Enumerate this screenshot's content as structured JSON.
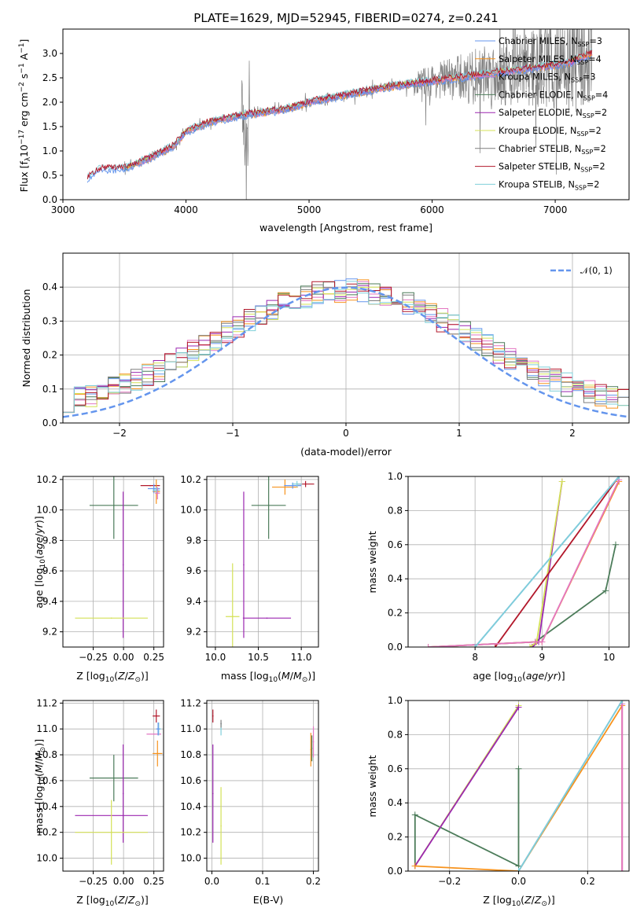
{
  "colors": [
    "#6495ed",
    "#f7931e",
    "#e377c2",
    "#4c7c5a",
    "#9b27b0",
    "#d4e157",
    "#7f7f7f",
    "#b2182b",
    "#7fcfd9"
  ],
  "chart_data": [
    {
      "type": "line",
      "id": "spectrum",
      "title": "PLATE=1629, MJD=52945, FIBERID=0274, z=0.241",
      "xlabel": "wavelength [Angstrom, rest frame]",
      "ylabel": "Flux [f$_\\lambda$10$^{-17}$ erg cm$^{-2}$ s$^{-1}$ A$^{-1}$]",
      "xlim": [
        3000,
        7600
      ],
      "ylim": [
        0,
        3.5
      ],
      "xticks": [
        "3000",
        "4000",
        "5000",
        "6000",
        "7000"
      ],
      "yticks": [
        "0.0",
        "0.5",
        "1.0",
        "1.5",
        "2.0",
        "2.5",
        "3.0"
      ],
      "legend_position": "upper right",
      "legend": [
        {
          "base": "Chabrier MILES, N",
          "sub": "SSP",
          "val": "=3"
        },
        {
          "base": "Salpeter MILES, N",
          "sub": "SSP",
          "val": "=4"
        },
        {
          "base": "Kroupa MILES, N",
          "sub": "SSP",
          "val": "=3"
        },
        {
          "base": "Chabrier ELODIE, N",
          "sub": "SSP",
          "val": "=4"
        },
        {
          "base": "Salpeter ELODIE, N",
          "sub": "SSP",
          "val": "=2"
        },
        {
          "base": "Kroupa ELODIE, N",
          "sub": "SSP",
          "val": "=2"
        },
        {
          "base": "Chabrier STELIB, N",
          "sub": "SSP",
          "val": "=2"
        },
        {
          "base": "Salpeter STELIB, N",
          "sub": "SSP",
          "val": "=2"
        },
        {
          "base": "Kroupa STELIB, N",
          "sub": "SSP",
          "val": "=2"
        }
      ],
      "model_continuum": {
        "x": [
          3200,
          3300,
          3500,
          3700,
          3900,
          4000,
          4200,
          4500,
          4800,
          5000,
          5300,
          5600,
          5900,
          6200,
          6500,
          6800,
          7100,
          7300
        ],
        "y": [
          0.45,
          0.62,
          0.65,
          0.85,
          1.1,
          1.4,
          1.6,
          1.75,
          1.85,
          2.0,
          2.15,
          2.3,
          2.4,
          2.5,
          2.6,
          2.7,
          2.8,
          3.0
        ]
      },
      "data_noise_note": "observed spectrum (grey)"
    },
    {
      "type": "step",
      "id": "residuals",
      "xlabel": "(data-model)/error",
      "ylabel": "Normed distribution",
      "xlim": [
        -2.5,
        2.5
      ],
      "ylim": [
        0,
        0.5
      ],
      "xticks": [
        "−2",
        "−1",
        "0",
        "1",
        "2"
      ],
      "yticks": [
        "0.0",
        "0.1",
        "0.2",
        "0.3",
        "0.4"
      ],
      "reference_label": "𝒩(0, 1)",
      "bin_edges_start": -2.5,
      "bin_width": 0.1,
      "series_base": [
        0.03,
        0.035,
        0.045,
        0.055,
        0.075,
        0.06,
        0.06,
        0.07,
        0.08,
        0.09,
        0.095,
        0.11,
        0.12,
        0.13,
        0.15,
        0.16,
        0.17,
        0.19,
        0.2,
        0.215,
        0.24,
        0.25,
        0.26,
        0.24,
        0.3,
        0.28,
        0.3,
        0.32,
        0.33,
        0.34,
        0.35,
        0.36,
        0.36,
        0.37,
        0.38,
        0.38,
        0.37,
        0.35,
        0.38,
        0.4,
        0.43,
        0.36,
        0.34,
        0.31,
        0.29,
        0.3,
        0.27,
        0.25,
        0.245,
        0.23,
        0.22,
        0.2,
        0.19,
        0.18,
        0.17,
        0.16,
        0.15,
        0.14,
        0.13,
        0.12,
        0.11,
        0.1,
        0.095,
        0.09,
        0.08,
        0.085,
        0.075,
        0.065,
        0.055,
        0.05
      ]
    },
    {
      "type": "errorbar",
      "id": "age_vs_Z",
      "xlabel": "Z [log$_{10}$(Z/Z$_\\odot$)]",
      "ylabel": "age  [log$_{10}$(age/yr)]",
      "xlim": [
        -0.5,
        0.33
      ],
      "ylim": [
        9.1,
        10.22
      ],
      "xticks": [
        {
          "v": -0.25,
          "l": "−0.25"
        },
        {
          "v": 0,
          "l": "0.00"
        },
        {
          "v": 0.25,
          "l": "0.25"
        }
      ],
      "yticks": [
        {
          "v": 9.2,
          "l": "9.2"
        },
        {
          "v": 9.4,
          "l": "9.4"
        },
        {
          "v": 9.6,
          "l": "9.6"
        },
        {
          "v": 9.8,
          "l": "9.8"
        },
        {
          "v": 10.0,
          "l": "10.0"
        },
        {
          "v": 10.2,
          "l": "10.2"
        }
      ],
      "points": [
        {
          "c": 3,
          "x": -0.08,
          "y": 10.03,
          "xe": 0.2,
          "ye": 0.22
        },
        {
          "c": 4,
          "x": -0.003,
          "y": 9.64,
          "xe": 0.0,
          "ye": 0.48
        },
        {
          "c": 5,
          "x": -0.1,
          "y": 9.29,
          "xe": 0.3,
          "ye": 0.0
        },
        {
          "c": 7,
          "x": 0.22,
          "y": 10.16,
          "xe": 0.08,
          "ye": 0.0
        },
        {
          "c": 1,
          "x": 0.27,
          "y": 10.12,
          "xe": 0.03,
          "ye": 0.08
        },
        {
          "c": 0,
          "x": 0.25,
          "y": 10.14,
          "xe": 0.05,
          "ye": 0.03
        },
        {
          "c": 8,
          "x": 0.27,
          "y": 10.13,
          "xe": 0.03,
          "ye": 0.02
        },
        {
          "c": 2,
          "x": 0.28,
          "y": 10.11,
          "xe": 0.02,
          "ye": 0.04
        }
      ]
    },
    {
      "type": "errorbar",
      "id": "age_vs_mass",
      "xlabel": "mass [log$_{10}$(M/M$_\\odot$)]",
      "xlim": [
        9.9,
        11.2
      ],
      "ylim": [
        9.1,
        10.22
      ],
      "xticks": [
        {
          "v": 10.0,
          "l": "10.0"
        },
        {
          "v": 10.5,
          "l": "10.5"
        },
        {
          "v": 11.0,
          "l": "11.0"
        }
      ],
      "yticks": [
        {
          "v": 9.2,
          "l": "9.2"
        },
        {
          "v": 9.4,
          "l": "9.4"
        },
        {
          "v": 9.6,
          "l": "9.6"
        },
        {
          "v": 9.8,
          "l": "9.8"
        },
        {
          "v": 10.0,
          "l": "10.0"
        },
        {
          "v": 10.2,
          "l": "10.2"
        }
      ],
      "points": [
        {
          "c": 3,
          "x": 10.62,
          "y": 10.03,
          "xe": 0.2,
          "ye": 0.22
        },
        {
          "c": 4,
          "x": 10.33,
          "y": 9.64,
          "xe": 0.0,
          "ye": 0.48
        },
        {
          "c": 4,
          "x": 10.6,
          "y": 9.29,
          "xe": 0.28,
          "ye": 0.0
        },
        {
          "c": 5,
          "x": 10.2,
          "y": 9.3,
          "xe": 0.08,
          "ye": 0.35
        },
        {
          "c": 1,
          "x": 10.81,
          "y": 10.15,
          "xe": 0.15,
          "ye": 0.05
        },
        {
          "c": 7,
          "x": 11.05,
          "y": 10.17,
          "xe": 0.1,
          "ye": 0.02
        },
        {
          "c": 0,
          "x": 10.9,
          "y": 10.16,
          "xe": 0.1,
          "ye": 0.02
        },
        {
          "c": 8,
          "x": 10.95,
          "y": 10.17,
          "xe": 0.06,
          "ye": 0.02
        }
      ]
    },
    {
      "type": "line",
      "id": "massweight_vs_age",
      "xlabel": "age  [log$_{10}$(age/yr)]",
      "ylabel": "mass weight",
      "xlim": [
        7.0,
        10.3
      ],
      "ylim": [
        0,
        1.0
      ],
      "xticks": [
        {
          "v": 8,
          "l": "8"
        },
        {
          "v": 9,
          "l": "9"
        },
        {
          "v": 10,
          "l": "10"
        }
      ],
      "yticks": [
        {
          "v": 0,
          "l": "0.0"
        },
        {
          "v": 0.2,
          "l": "0.2"
        },
        {
          "v": 0.4,
          "l": "0.4"
        },
        {
          "v": 0.6,
          "l": "0.6"
        },
        {
          "v": 0.8,
          "l": "0.8"
        },
        {
          "v": 1.0,
          "l": "1.0"
        }
      ],
      "series": [
        {
          "c": 3,
          "x": [
            7.3,
            8.9,
            9.95,
            10.1
          ],
          "y": [
            0.0,
            0.03,
            0.33,
            0.6
          ]
        },
        {
          "c": 4,
          "x": [
            8.85,
            8.95,
            9.3
          ],
          "y": [
            0.0,
            0.03,
            0.97
          ]
        },
        {
          "c": 5,
          "x": [
            8.82,
            8.92,
            9.3
          ],
          "y": [
            0.0,
            0.03,
            0.97
          ]
        },
        {
          "c": 7,
          "x": [
            8.3,
            10.15
          ],
          "y": [
            0.0,
            1.0
          ]
        },
        {
          "c": 1,
          "x": [
            7.3,
            8.9,
            9.0,
            10.15
          ],
          "y": [
            0.0,
            0.03,
            0.03,
            0.97
          ]
        },
        {
          "c": 2,
          "x": [
            7.3,
            8.9,
            9.0,
            10.15
          ],
          "y": [
            0.0,
            0.03,
            0.03,
            0.98
          ]
        },
        {
          "c": 0,
          "x": [
            8.0,
            10.15
          ],
          "y": [
            0.0,
            1.0
          ]
        },
        {
          "c": 8,
          "x": [
            8.0,
            10.15
          ],
          "y": [
            0.0,
            1.0
          ]
        }
      ]
    },
    {
      "type": "errorbar",
      "id": "mass_vs_Z",
      "xlabel": "Z [log$_{10}$(Z/Z$_\\odot$)]",
      "ylabel": "mass [log$_{10}$(M/M$_\\odot$)]",
      "xlim": [
        -0.5,
        0.33
      ],
      "ylim": [
        9.9,
        11.22
      ],
      "xticks": [
        {
          "v": -0.25,
          "l": "−0.25"
        },
        {
          "v": 0,
          "l": "0.00"
        },
        {
          "v": 0.25,
          "l": "0.25"
        }
      ],
      "yticks": [
        {
          "v": 10.0,
          "l": "10.0"
        },
        {
          "v": 10.2,
          "l": "10.2"
        },
        {
          "v": 10.4,
          "l": "10.4"
        },
        {
          "v": 10.6,
          "l": "10.6"
        },
        {
          "v": 10.8,
          "l": "10.8"
        },
        {
          "v": 11.0,
          "l": "11.0"
        },
        {
          "v": 11.2,
          "l": "11.2"
        }
      ],
      "points": [
        {
          "c": 3,
          "x": -0.08,
          "y": 10.62,
          "xe": 0.2,
          "ye": 0.18
        },
        {
          "c": 4,
          "x": -0.003,
          "y": 10.5,
          "xe": 0.0,
          "ye": 0.38
        },
        {
          "c": 4,
          "x": -0.1,
          "y": 10.33,
          "xe": 0.3,
          "ye": 0.0
        },
        {
          "c": 5,
          "x": -0.1,
          "y": 10.2,
          "xe": 0.3,
          "ye": 0.25
        },
        {
          "c": 2,
          "x": 0.25,
          "y": 10.96,
          "xe": 0.06,
          "ye": 0.0
        },
        {
          "c": 1,
          "x": 0.28,
          "y": 10.81,
          "xe": 0.04,
          "ye": 0.1
        },
        {
          "c": 7,
          "x": 0.27,
          "y": 11.1,
          "xe": 0.03,
          "ye": 0.05
        },
        {
          "c": 8,
          "x": 0.29,
          "y": 11.0,
          "xe": 0.02,
          "ye": 0.05
        },
        {
          "c": 0,
          "x": 0.285,
          "y": 11.0,
          "xe": 0.015,
          "ye": 0.05
        }
      ]
    },
    {
      "type": "errorbar",
      "id": "mass_vs_EBV",
      "xlabel": "E(B-V)",
      "xlim": [
        -0.01,
        0.21
      ],
      "ylim": [
        9.9,
        11.22
      ],
      "xticks": [
        {
          "v": 0.0,
          "l": "0.0"
        },
        {
          "v": 0.1,
          "l": "0.1"
        },
        {
          "v": 0.2,
          "l": "0.2"
        }
      ],
      "yticks": [
        {
          "v": 10.0,
          "l": "10.0"
        },
        {
          "v": 10.2,
          "l": "10.2"
        },
        {
          "v": 10.4,
          "l": "10.4"
        },
        {
          "v": 10.6,
          "l": "10.6"
        },
        {
          "v": 10.8,
          "l": "10.8"
        },
        {
          "v": 11.0,
          "l": "11.0"
        },
        {
          "v": 11.2,
          "l": "11.2"
        }
      ],
      "points": [
        {
          "c": 7,
          "x": 0.002,
          "y": 11.1,
          "xe": 0.0,
          "ye": 0.05
        },
        {
          "c": 4,
          "x": 0.002,
          "y": 10.5,
          "xe": 0.0,
          "ye": 0.38
        },
        {
          "c": 5,
          "x": 0.018,
          "y": 10.25,
          "xe": 0.0,
          "ye": 0.3
        },
        {
          "c": 8,
          "x": 0.018,
          "y": 11.0,
          "xe": 0.0,
          "ye": 0.05
        },
        {
          "c": 6,
          "x": 0.018,
          "y": 11.04,
          "xe": 0.0,
          "ye": 0.03
        },
        {
          "c": 1,
          "x": 0.195,
          "y": 10.84,
          "xe": 0.0,
          "ye": 0.13
        },
        {
          "c": 3,
          "x": 0.197,
          "y": 10.85,
          "xe": 0.0,
          "ye": 0.1
        },
        {
          "c": 2,
          "x": 0.2,
          "y": 10.9,
          "xe": 0.0,
          "ye": 0.12
        }
      ]
    },
    {
      "type": "line",
      "id": "massweight_vs_Z",
      "xlabel": "Z [log$_{10}$(Z/Z$_\\odot$)]",
      "ylabel": "mass weight",
      "xlim": [
        -0.32,
        0.32
      ],
      "ylim": [
        0,
        1.0
      ],
      "xticks": [
        {
          "v": -0.2,
          "l": "−0.2"
        },
        {
          "v": 0.0,
          "l": "0.0"
        },
        {
          "v": 0.2,
          "l": "0.2"
        }
      ],
      "yticks": [
        {
          "v": 0,
          "l": "0.0"
        },
        {
          "v": 0.2,
          "l": "0.2"
        },
        {
          "v": 0.4,
          "l": "0.4"
        },
        {
          "v": 0.6,
          "l": "0.6"
        },
        {
          "v": 0.8,
          "l": "0.8"
        },
        {
          "v": 1.0,
          "l": "1.0"
        }
      ],
      "series": [
        {
          "c": 3,
          "x": [
            -0.3,
            -0.3,
            0.0,
            0.0,
            0.0
          ],
          "y": [
            0.03,
            0.33,
            0.03,
            0.6,
            0.03
          ]
        },
        {
          "c": 5,
          "x": [
            -0.3,
            0.0
          ],
          "y": [
            0.03,
            0.97
          ]
        },
        {
          "c": 4,
          "x": [
            -0.3,
            0.0
          ],
          "y": [
            0.03,
            0.96
          ]
        },
        {
          "c": 1,
          "x": [
            -0.3,
            0.0,
            0.3
          ],
          "y": [
            0.03,
            0.0,
            0.97
          ]
        },
        {
          "c": 7,
          "x": [
            0.3,
            0.3
          ],
          "y": [
            0.0,
            1.0
          ]
        },
        {
          "c": 2,
          "x": [
            0.3,
            0.3
          ],
          "y": [
            0.0,
            0.98
          ]
        },
        {
          "c": 0,
          "x": [
            0.0,
            0.3
          ],
          "y": [
            0.0,
            1.0
          ]
        },
        {
          "c": 8,
          "x": [
            0.0,
            0.3
          ],
          "y": [
            0.0,
            1.0
          ]
        }
      ]
    }
  ]
}
